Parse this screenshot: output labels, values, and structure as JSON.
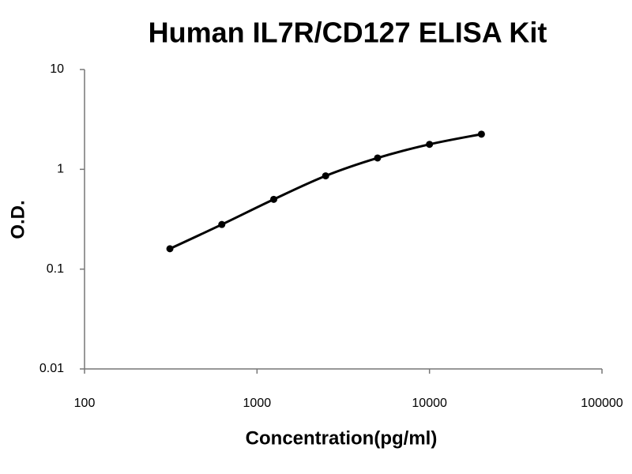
{
  "chart_data": {
    "type": "line",
    "title": "Human IL7R/CD127 ELISA Kit",
    "x_label": "Concentration(pg/ml)",
    "y_label": "O.D.",
    "x": [
      312.5,
      625,
      1250,
      2500,
      5000,
      10000,
      20000
    ],
    "series": [
      {
        "name": null,
        "color": "#000000",
        "values": [
          0.16,
          0.28,
          0.5,
          0.86,
          1.3,
          1.78,
          2.25
        ]
      }
    ],
    "x_scale": "log",
    "y_scale": "log",
    "xlim": [
      100,
      100000
    ],
    "xticks": [
      100,
      1000,
      10000,
      100000
    ],
    "ylim": [
      0.01,
      10
    ],
    "yticks": [
      0.01,
      0.1,
      1,
      10
    ],
    "grid": false,
    "markers": true,
    "smooth": true
  }
}
